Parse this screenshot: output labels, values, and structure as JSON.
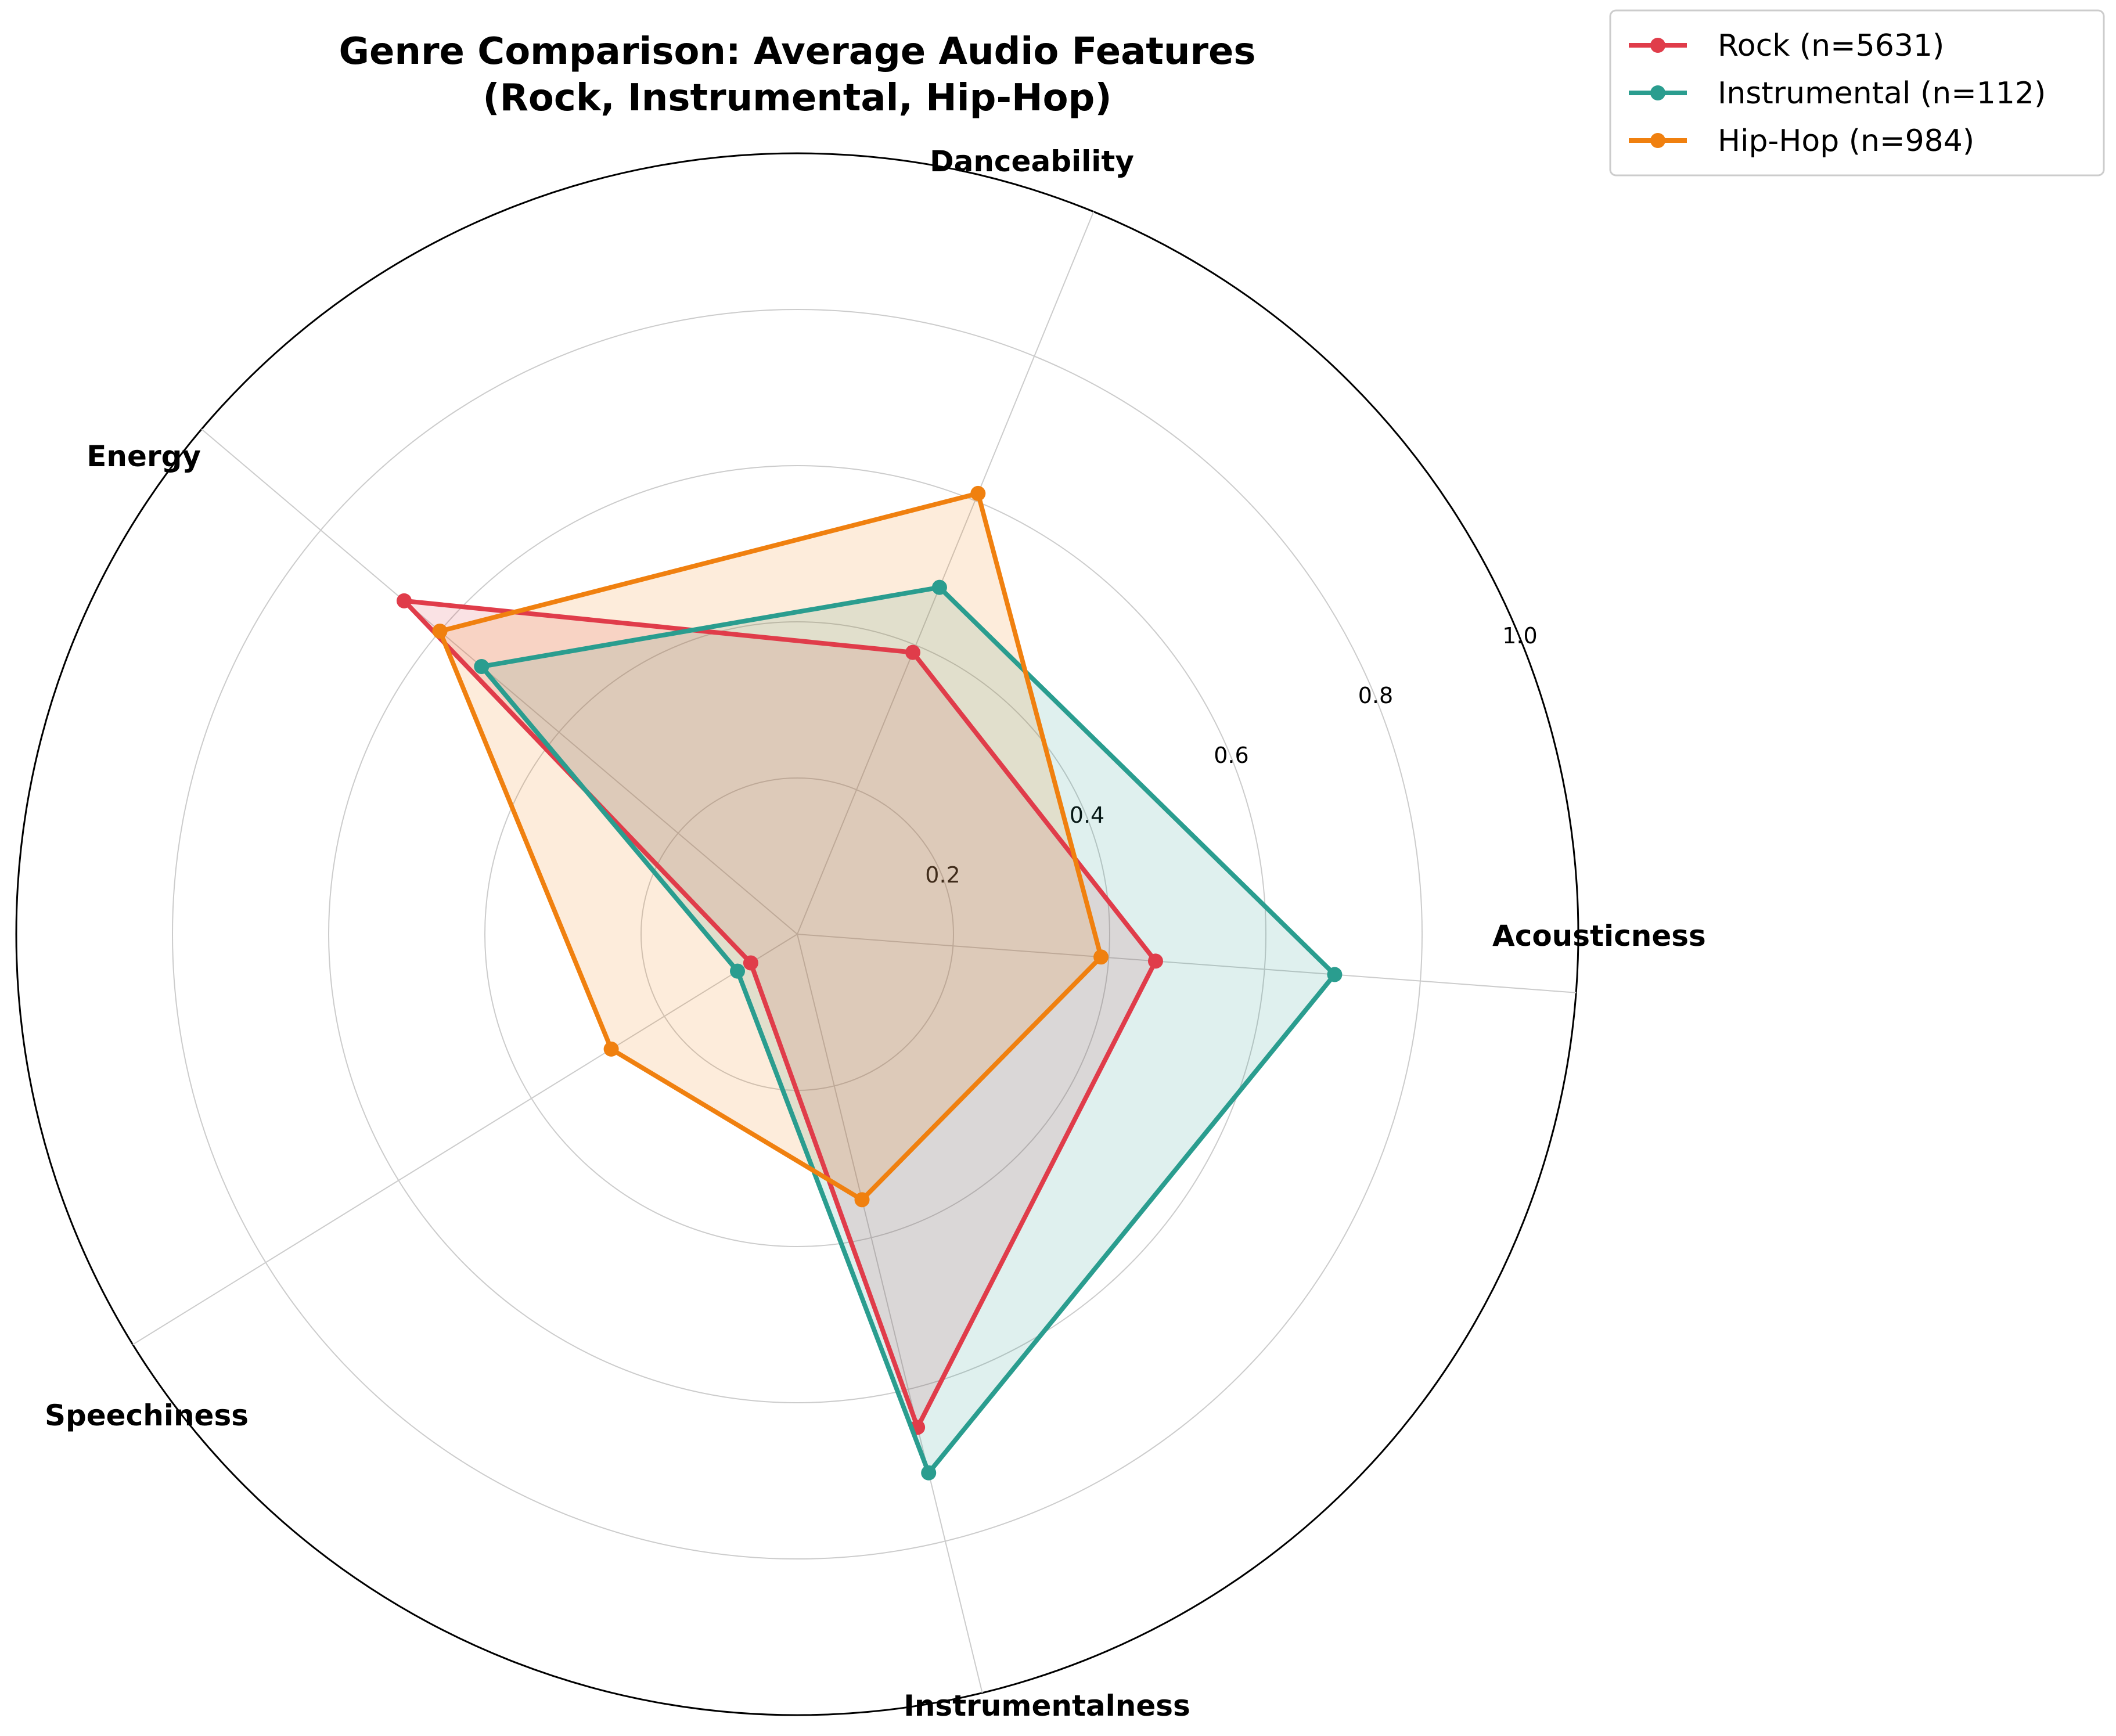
{
  "chart_data": {
    "type": "radar",
    "title_lines": [
      "Genre Comparison: Average Audio Features",
      "(Rock, Instrumental, Hip-Hop)"
    ],
    "axes": [
      "Acousticness",
      "Danceability",
      "Energy",
      "Speechiness",
      "Instrumentalness"
    ],
    "radial_range": [
      0,
      1.0
    ],
    "radial_ticks": [
      0.2,
      0.4,
      0.6,
      0.8,
      1.0
    ],
    "radial_tick_labels": [
      "0.2",
      "0.4",
      "0.6",
      "0.8",
      "1.0"
    ],
    "grid": true,
    "legend_position": "top-right",
    "series": [
      {
        "name": "Rock (n=5631)",
        "color": "#e03c4a",
        "values": [
          0.46,
          0.39,
          0.66,
          0.07,
          0.65
        ]
      },
      {
        "name": "Instrumental (n=112)",
        "color": "#2a9d8f",
        "values": [
          0.69,
          0.48,
          0.53,
          0.09,
          0.71
        ]
      },
      {
        "name": "Hip-Hop (n=984)",
        "color": "#f0800f",
        "values": [
          0.39,
          0.61,
          0.6,
          0.28,
          0.35
        ]
      }
    ]
  }
}
